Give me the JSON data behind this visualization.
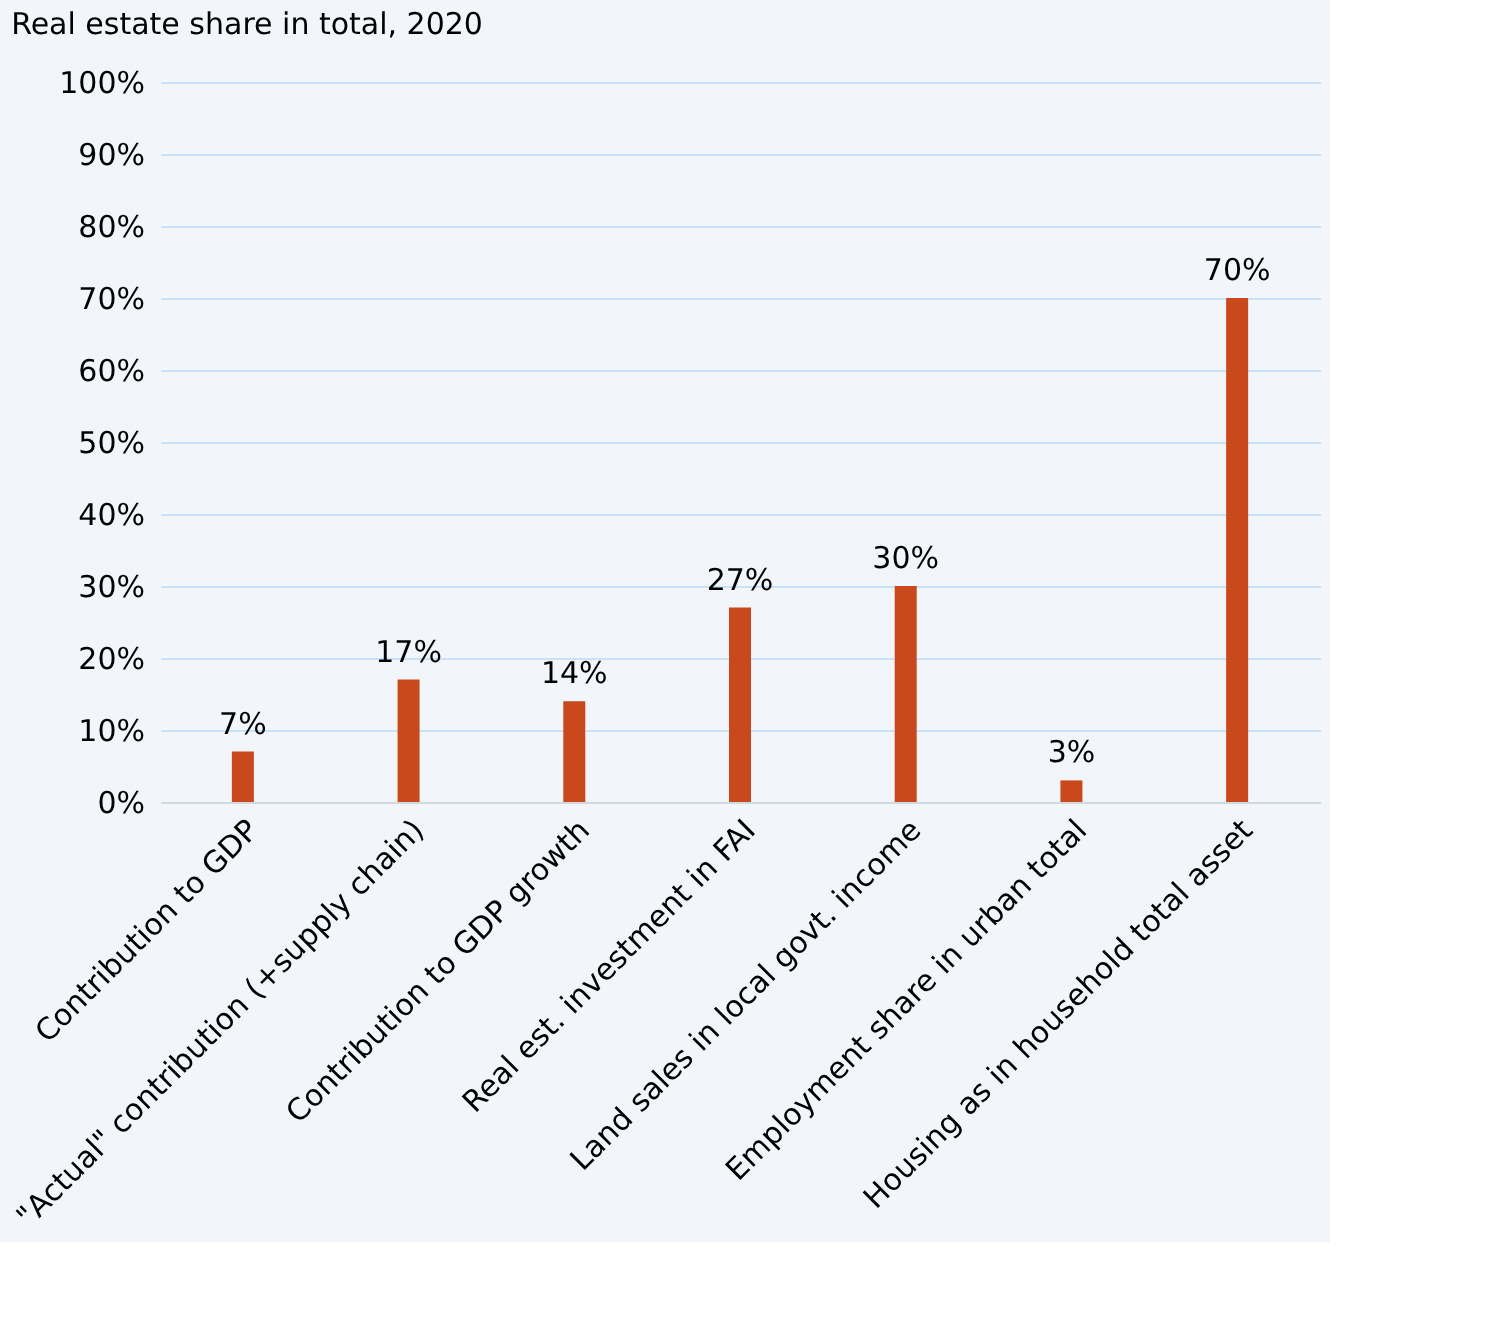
{
  "chart_data": {
    "type": "bar",
    "title": "Real estate share in total, 2020",
    "categories": [
      "Contribution to GDP",
      "\"Actual\" contribution (+supply chain)",
      "Contribution to GDP growth",
      "Real est. investment in FAI",
      "Land sales in local govt. income",
      "Employment share in urban total",
      "Housing as in household total asset"
    ],
    "values": [
      7,
      17,
      14,
      27,
      30,
      3,
      70
    ],
    "value_labels": [
      "7%",
      "17%",
      "14%",
      "27%",
      "30%",
      "3%",
      "70%"
    ],
    "color": "#c9491c",
    "ylim": [
      0,
      100
    ],
    "yticks": [
      {
        "value": 0,
        "label": "0%"
      },
      {
        "value": 10,
        "label": "10%"
      },
      {
        "value": 20,
        "label": "20%"
      },
      {
        "value": 30,
        "label": "30%"
      },
      {
        "value": 40,
        "label": "40%"
      },
      {
        "value": 50,
        "label": "50%"
      },
      {
        "value": 60,
        "label": "60%"
      },
      {
        "value": 70,
        "label": "70%"
      },
      {
        "value": 80,
        "label": "80%"
      },
      {
        "value": 90,
        "label": "90%"
      },
      {
        "value": 100,
        "label": "100%"
      }
    ],
    "grid": "y"
  }
}
